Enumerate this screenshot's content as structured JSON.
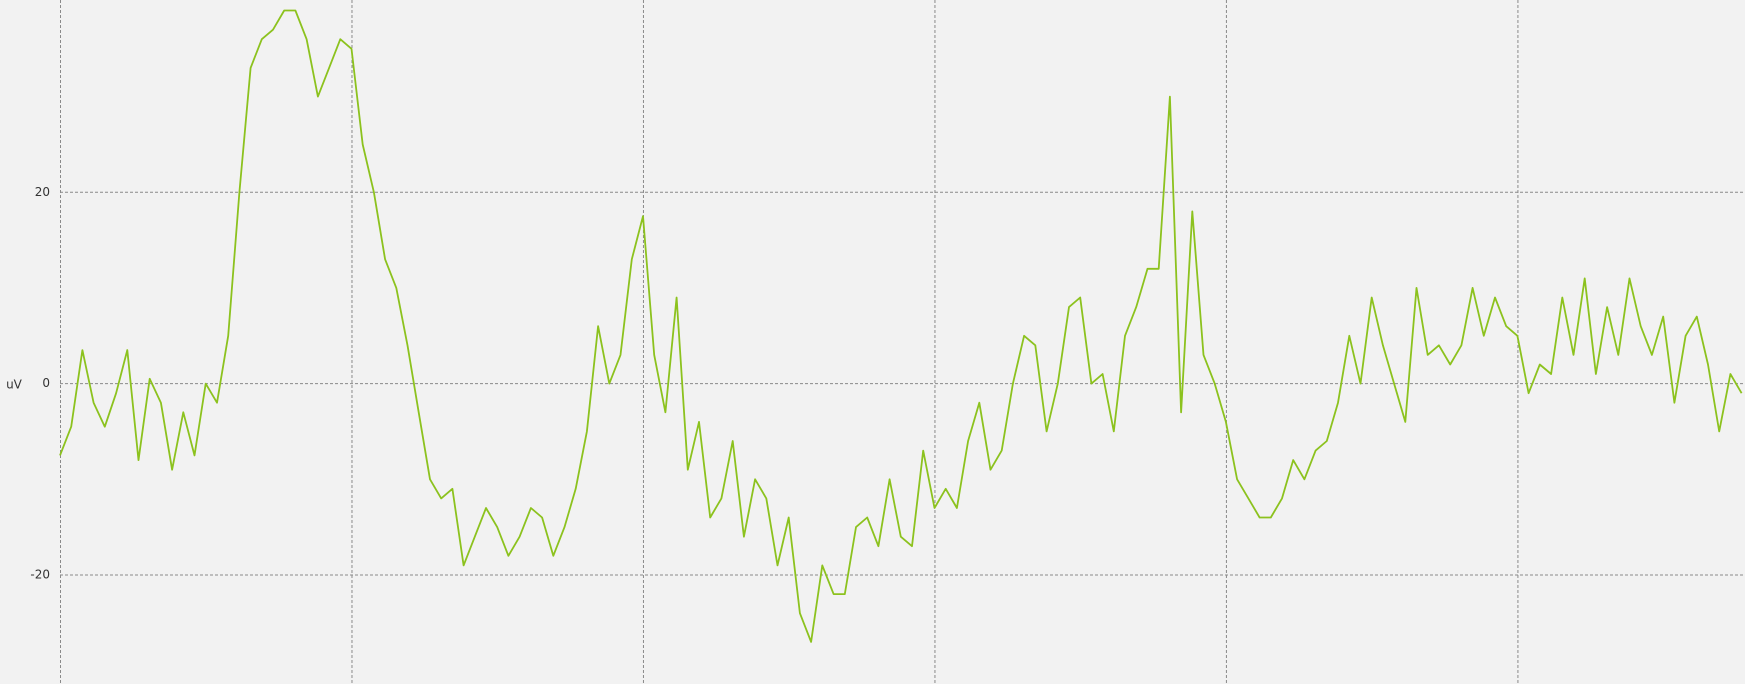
{
  "chart_data": {
    "type": "line",
    "y_label": "uV",
    "series": [
      {
        "name": null,
        "color": "#8cc21e",
        "values": [
          -7.5,
          -4.5,
          3.5,
          -2,
          -4.5,
          -1,
          3.5,
          -8,
          0.5,
          -2,
          -9,
          -3,
          -7.5,
          0,
          -2,
          5,
          20,
          33,
          36,
          37,
          39,
          39,
          36,
          30,
          33,
          36,
          35,
          25,
          20,
          13,
          10,
          4,
          -3,
          -10,
          -12,
          -11,
          -19,
          -16,
          -13,
          -15,
          -18,
          -16,
          -13,
          -14,
          -18,
          -15,
          -11,
          -5,
          6,
          0,
          3,
          13,
          17.5,
          3,
          -3,
          9,
          -9,
          -4,
          -14,
          -12,
          -6,
          -16,
          -10,
          -12,
          -19,
          -14,
          -24,
          -27,
          -19,
          -22,
          -22,
          -15,
          -14,
          -17,
          -10,
          -16,
          -17,
          -7,
          -13,
          -11,
          -13,
          -6,
          -2,
          -9,
          -7,
          0,
          5,
          4,
          -5,
          0,
          8,
          9,
          0,
          1,
          -5,
          5,
          8,
          12,
          12,
          30,
          -3,
          18,
          3,
          0,
          -4,
          -10,
          -12,
          -14,
          -14,
          -12,
          -8,
          -10,
          -7,
          -6,
          -2,
          5,
          0,
          9,
          4,
          0,
          -4,
          10,
          3,
          4,
          2,
          4,
          10,
          5,
          9,
          6,
          5,
          -1,
          2,
          1,
          9,
          3,
          11,
          1,
          8,
          3,
          11,
          6,
          3,
          7,
          -2,
          5,
          7,
          2,
          -5,
          1,
          -1
        ]
      }
    ],
    "xlim": [
      0,
      150.3
    ],
    "xticks": [
      0,
      26,
      52,
      78,
      104,
      130
    ],
    "ylim": [
      -31.4,
      40.1
    ],
    "yticks": [
      -20,
      0,
      20
    ],
    "grid": true
  }
}
